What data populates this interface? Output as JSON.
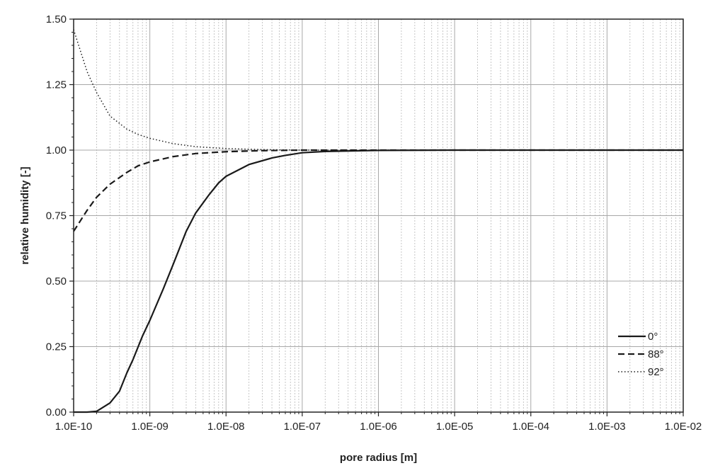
{
  "chart_data": {
    "type": "line",
    "title": "",
    "xlabel": "pore radius [m]",
    "ylabel": "relative humidity [-]",
    "xscale": "log",
    "xlim": [
      1e-10,
      0.01
    ],
    "ylim": [
      0,
      1.5
    ],
    "x_ticks": [
      1e-10,
      1e-09,
      1e-08,
      1e-07,
      1e-06,
      1e-05,
      0.0001,
      0.001,
      0.01
    ],
    "x_tick_labels": [
      "1.0E-10",
      "1.0E-09",
      "1.0E-08",
      "1.0E-07",
      "1.0E-06",
      "1.0E-05",
      "1.0E-04",
      "1.0E-03",
      "1.0E-02"
    ],
    "y_ticks": [
      0,
      0.25,
      0.5,
      0.75,
      1.0,
      1.25,
      1.5
    ],
    "y_tick_labels": [
      "0.00",
      "0.25",
      "0.50",
      "0.75",
      "1.00",
      "1.25",
      "1.50"
    ],
    "grid": true,
    "legend_position": "bottom-right",
    "series": [
      {
        "name": "0°",
        "line_style": "solid",
        "color": "#1a1a1a",
        "x": [
          1e-10,
          1.5e-10,
          2e-10,
          3e-10,
          4e-10,
          5e-10,
          6e-10,
          8e-10,
          1e-09,
          1.5e-09,
          2e-09,
          3e-09,
          4e-09,
          6e-09,
          8e-09,
          1e-08,
          2e-08,
          4e-08,
          6e-08,
          1e-07,
          2e-07,
          1e-06,
          1e-05,
          0.0001,
          0.001,
          0.01
        ],
        "y": [
          0,
          0,
          0.003,
          0.035,
          0.08,
          0.15,
          0.2,
          0.29,
          0.35,
          0.47,
          0.56,
          0.69,
          0.76,
          0.83,
          0.875,
          0.9,
          0.945,
          0.97,
          0.98,
          0.99,
          0.995,
          0.999,
          1.0,
          1.0,
          1.0,
          1.0
        ]
      },
      {
        "name": "88°",
        "line_style": "dashed",
        "color": "#1a1a1a",
        "x": [
          1e-10,
          1.5e-10,
          2e-10,
          3e-10,
          5e-10,
          7e-10,
          1e-09,
          2e-09,
          4e-09,
          1e-08,
          3e-08,
          1e-07,
          1e-06,
          1e-05,
          0.0001,
          0.001,
          0.01
        ],
        "y": [
          0.69,
          0.77,
          0.82,
          0.87,
          0.915,
          0.94,
          0.955,
          0.975,
          0.987,
          0.994,
          0.998,
          1.0,
          1.0,
          1.0,
          1.0,
          1.0,
          1.0
        ]
      },
      {
        "name": "92°",
        "line_style": "dotted",
        "color": "#1a1a1a",
        "x": [
          1e-10,
          1.5e-10,
          2e-10,
          3e-10,
          5e-10,
          7e-10,
          1e-09,
          2e-09,
          4e-09,
          1e-08,
          3e-08,
          1e-07,
          1e-06,
          1e-05,
          0.0001,
          0.001,
          0.01
        ],
        "y": [
          1.46,
          1.3,
          1.22,
          1.13,
          1.08,
          1.06,
          1.045,
          1.025,
          1.013,
          1.006,
          1.002,
          1.0,
          1.0,
          1.0,
          1.0,
          1.0,
          1.0
        ]
      }
    ]
  }
}
